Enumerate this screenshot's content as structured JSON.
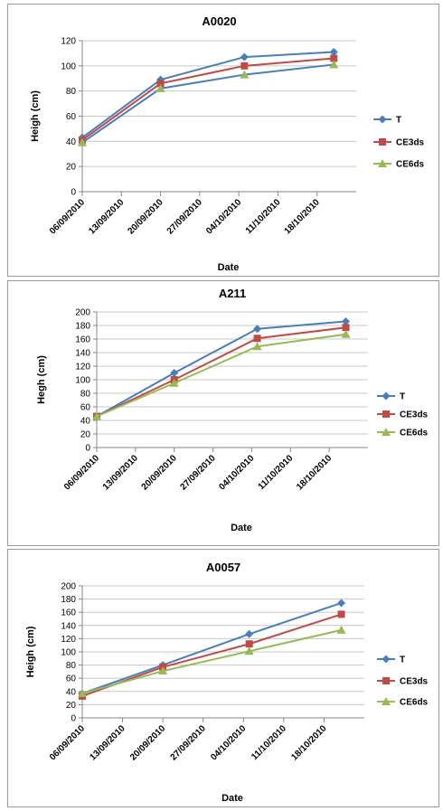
{
  "chart_data": [
    {
      "type": "line",
      "title": "A0020",
      "xlabel": "Date",
      "ylabel": "Heigh (cm)",
      "ylim": [
        0,
        120
      ],
      "y_ticks": [
        0,
        20,
        40,
        60,
        80,
        100,
        120
      ],
      "x_tick_labels": [
        "06/09/2010",
        "13/09/2010",
        "20/09/2010",
        "27/09/2010",
        "04/10/2010",
        "11/10/2010",
        "18/10/2010"
      ],
      "x_dates": [
        "06/09/2010",
        "20/09/2010",
        "05/10/2010",
        "21/10/2010"
      ],
      "grid": "horizontal",
      "legend": "right",
      "series": [
        {
          "name": "T",
          "marker": "diamond",
          "color": "#4a7ebb",
          "values": [
            43,
            89,
            107,
            111
          ]
        },
        {
          "name": "CE3ds",
          "marker": "square",
          "color": "#be4b48",
          "values": [
            41,
            86,
            100,
            106
          ]
        },
        {
          "name": "CE6ds",
          "marker": "triangle",
          "color": "#98b954",
          "line_color": "#4a7ebb",
          "values": [
            39,
            82,
            93,
            101
          ]
        }
      ]
    },
    {
      "type": "line",
      "title": "A211",
      "xlabel": "Date",
      "ylabel": "Hegh (cm)",
      "ylim": [
        0,
        200
      ],
      "y_ticks": [
        0,
        20,
        40,
        60,
        80,
        100,
        120,
        140,
        160,
        180,
        200
      ],
      "x_tick_labels": [
        "06/09/2010",
        "13/09/2010",
        "20/09/2010",
        "27/09/2010",
        "04/10/2010",
        "11/10/2010",
        "18/10/2010"
      ],
      "x_dates": [
        "06/09/2010",
        "20/09/2010",
        "05/10/2010",
        "21/10/2010"
      ],
      "grid": "horizontal",
      "legend": "right",
      "series": [
        {
          "name": "T",
          "marker": "diamond",
          "color": "#4a7ebb",
          "values": [
            46,
            110,
            175,
            186
          ]
        },
        {
          "name": "CE3ds",
          "marker": "square",
          "color": "#be4b48",
          "values": [
            46,
            100,
            161,
            177
          ]
        },
        {
          "name": "CE6ds",
          "marker": "triangle",
          "color": "#98b954",
          "values": [
            46,
            95,
            149,
            167
          ]
        }
      ]
    },
    {
      "type": "line",
      "title": "A0057",
      "xlabel": "Date",
      "ylabel": "Heigh (cm)",
      "ylim": [
        0,
        200
      ],
      "y_ticks": [
        0,
        20,
        40,
        60,
        80,
        100,
        120,
        140,
        160,
        180,
        200
      ],
      "x_tick_labels": [
        "06/09/2010",
        "13/09/2010",
        "20/09/2010",
        "27/09/2010",
        "04/10/2010",
        "11/10/2010",
        "18/10/2010"
      ],
      "x_dates": [
        "06/09/2010",
        "20/09/2010",
        "05/10/2010",
        "21/10/2010"
      ],
      "grid": "horizontal",
      "legend": "right",
      "series": [
        {
          "name": "T",
          "marker": "diamond",
          "color": "#4a7ebb",
          "values": [
            37,
            80,
            127,
            174
          ]
        },
        {
          "name": "CE3ds",
          "marker": "square",
          "color": "#be4b48",
          "values": [
            33,
            77,
            112,
            157
          ]
        },
        {
          "name": "CE6ds",
          "marker": "triangle",
          "color": "#98b954",
          "values": [
            37,
            71,
            101,
            133
          ]
        }
      ]
    }
  ]
}
